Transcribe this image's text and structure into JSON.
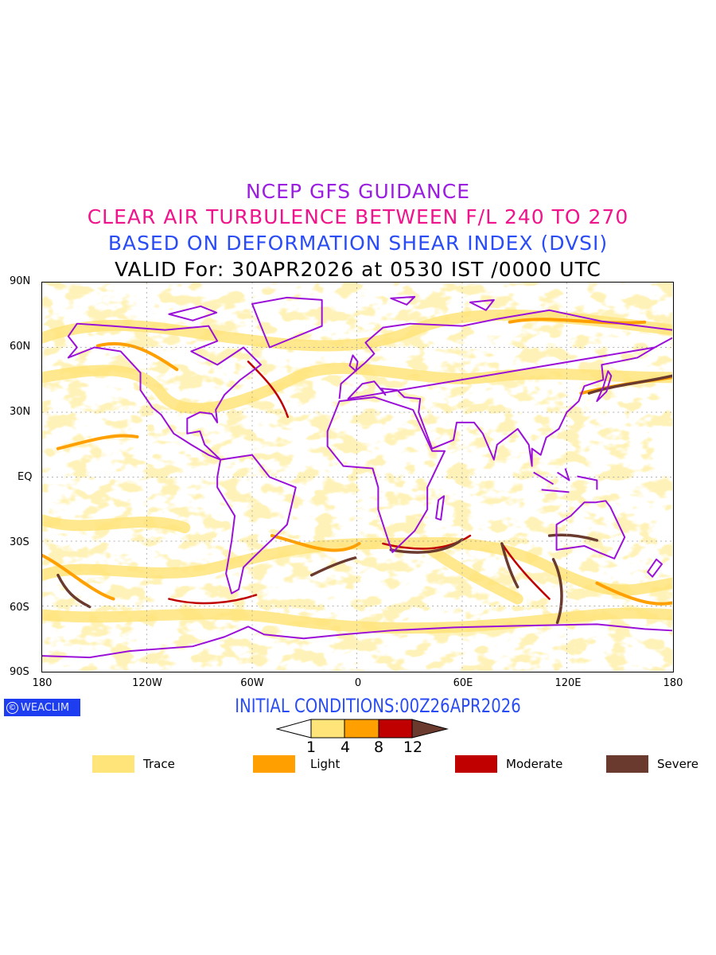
{
  "header": {
    "line1": "NCEP GFS GUIDANCE",
    "line2": "CLEAR AIR TURBULENCE BETWEEN F/L 240 TO 270",
    "line3": "BASED ON DEFORMATION SHEAR INDEX (DVSI)",
    "line4": "VALID For: 30APR2026 at 0530 IST /0000 UTC"
  },
  "axes": {
    "y_labels": [
      "90N",
      "60N",
      "30N",
      "EQ",
      "30S",
      "60S",
      "90S"
    ],
    "x_labels": [
      "180",
      "120W",
      "60W",
      "0",
      "60E",
      "120E",
      "180"
    ]
  },
  "footer": {
    "logo": "WEACLIM",
    "logo_symbol": "©",
    "initial_conditions": "INITIAL CONDITIONS:00Z26APR2026"
  },
  "colorbar": {
    "levels": [
      "1",
      "4",
      "8",
      "12"
    ],
    "colors": [
      "#ffffff",
      "#ffe47a",
      "#ffa000",
      "#c00000",
      "#6b3a2e"
    ]
  },
  "legend": [
    {
      "label": "Trace",
      "color": "#ffe47a"
    },
    {
      "label": "Light",
      "color": "#ffa000"
    },
    {
      "label": "Moderate",
      "color": "#c00000"
    },
    {
      "label": "Severe",
      "color": "#6b3a2e"
    }
  ],
  "colors": {
    "coastline": "#9b10d8",
    "title_purple": "#9a1ee0",
    "title_pink": "#f0148c",
    "title_blue": "#2a4cf5"
  }
}
